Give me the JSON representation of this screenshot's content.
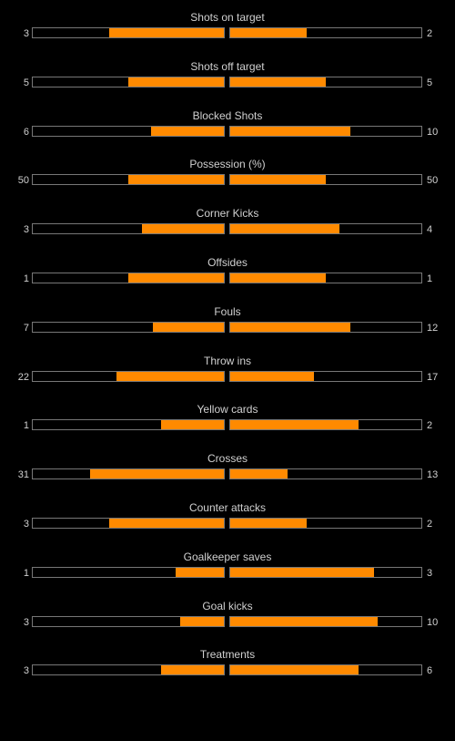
{
  "chart_data": {
    "type": "bar",
    "accent_color": "#ff8a00",
    "background_color": "#000000",
    "stats": [
      {
        "label": "Shots on target",
        "home": 3,
        "away": 2,
        "home_fill": 0.6,
        "away_fill": 0.4
      },
      {
        "label": "Shots off target",
        "home": 5,
        "away": 5,
        "home_fill": 0.5,
        "away_fill": 0.5
      },
      {
        "label": "Blocked Shots",
        "home": 6,
        "away": 10,
        "home_fill": 0.38,
        "away_fill": 0.63
      },
      {
        "label": "Possession (%)",
        "home": 50,
        "away": 50,
        "home_fill": 0.5,
        "away_fill": 0.5
      },
      {
        "label": "Corner Kicks",
        "home": 3,
        "away": 4,
        "home_fill": 0.43,
        "away_fill": 0.57
      },
      {
        "label": "Offsides",
        "home": 1,
        "away": 1,
        "home_fill": 0.5,
        "away_fill": 0.5
      },
      {
        "label": "Fouls",
        "home": 7,
        "away": 12,
        "home_fill": 0.37,
        "away_fill": 0.63
      },
      {
        "label": "Throw ins",
        "home": 22,
        "away": 17,
        "home_fill": 0.56,
        "away_fill": 0.44
      },
      {
        "label": "Yellow cards",
        "home": 1,
        "away": 2,
        "home_fill": 0.33,
        "away_fill": 0.67
      },
      {
        "label": "Crosses",
        "home": 31,
        "away": 13,
        "home_fill": 0.7,
        "away_fill": 0.3
      },
      {
        "label": "Counter attacks",
        "home": 3,
        "away": 2,
        "home_fill": 0.6,
        "away_fill": 0.4
      },
      {
        "label": "Goalkeeper saves",
        "home": 1,
        "away": 3,
        "home_fill": 0.25,
        "away_fill": 0.75
      },
      {
        "label": "Goal kicks",
        "home": 3,
        "away": 10,
        "home_fill": 0.23,
        "away_fill": 0.77
      },
      {
        "label": "Treatments",
        "home": 3,
        "away": 6,
        "home_fill": 0.33,
        "away_fill": 0.67
      }
    ]
  }
}
